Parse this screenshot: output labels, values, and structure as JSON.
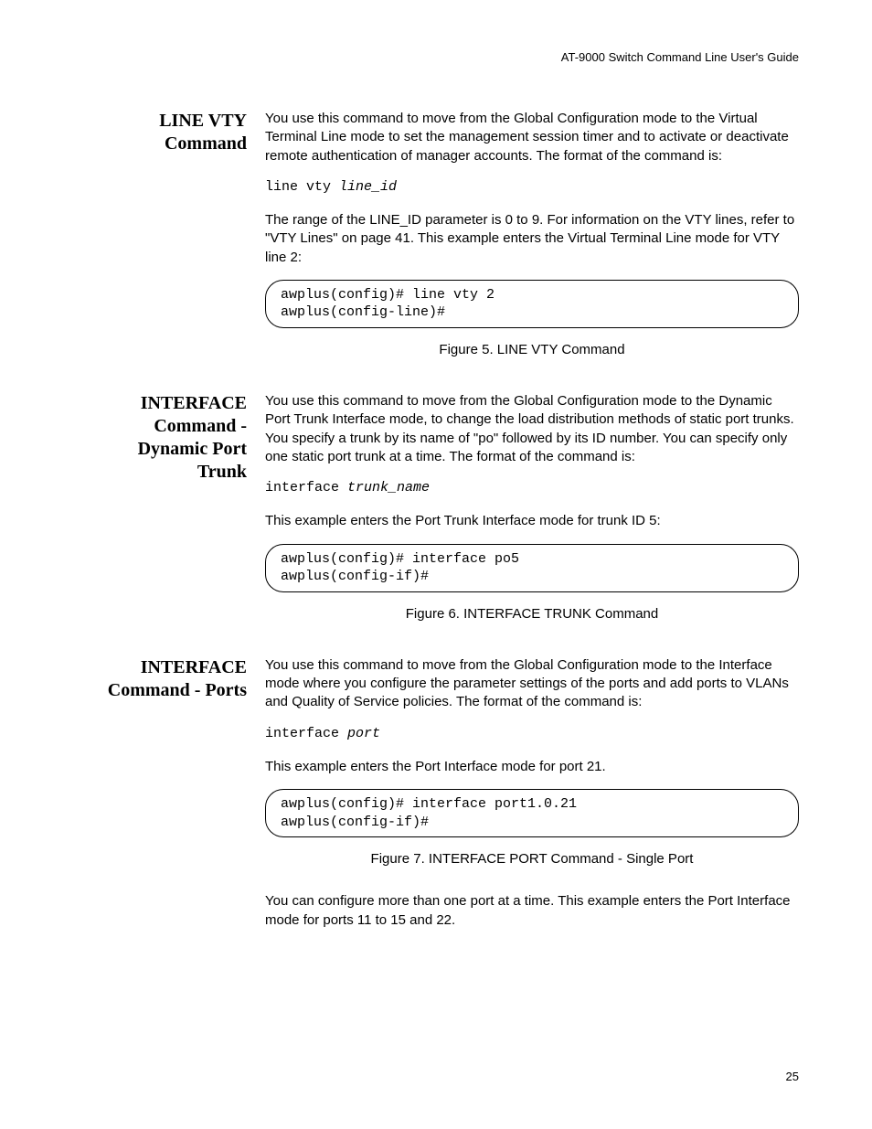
{
  "header": {
    "running_title": "AT-9000 Switch Command Line User's Guide"
  },
  "sections": {
    "line_vty": {
      "heading_l1": "LINE VTY",
      "heading_l2": "Command",
      "para1": "You use this command to move from the Global Configuration mode to the Virtual Terminal Line mode to set the management session timer and to activate or deactivate remote authentication of manager accounts. The format of the command is:",
      "syntax_cmd": "line vty ",
      "syntax_arg": "line_id",
      "para2": "The range of the LINE_ID parameter is 0 to 9. For information on the VTY lines, refer to \"VTY Lines\" on page 41. This example enters the Virtual Terminal Line mode for VTY line 2:",
      "box": "awplus(config)# line vty 2\nawplus(config-line)#",
      "caption": "Figure 5. LINE VTY Command"
    },
    "interface_trunk": {
      "heading_l1": "INTERFACE",
      "heading_l2": "Command -",
      "heading_l3": "Dynamic Port",
      "heading_l4": "Trunk",
      "para1": "You use this command to move from the Global Configuration mode to the Dynamic Port Trunk Interface mode, to change the load distribution methods of static port trunks. You specify a trunk by its name of \"po\" followed by its ID number. You can specify only one static port trunk at a time. The format of the command is:",
      "syntax_cmd": "interface ",
      "syntax_arg": "trunk_name",
      "para2": "This example enters the Port Trunk Interface mode for trunk ID 5:",
      "box": "awplus(config)# interface po5\nawplus(config-if)#",
      "caption": "Figure 6. INTERFACE TRUNK Command"
    },
    "interface_ports": {
      "heading_l1": "INTERFACE",
      "heading_l2": "Command - Ports",
      "para1": "You use this command to move from the Global Configuration mode to the Interface mode where you configure the parameter settings of the ports and add ports to VLANs and Quality of Service policies. The format of the command is:",
      "syntax_cmd": "interface ",
      "syntax_arg": "port",
      "para2": "This example enters the Port Interface mode for port 21.",
      "box": "awplus(config)# interface port1.0.21\nawplus(config-if)#",
      "caption": "Figure 7. INTERFACE PORT Command - Single Port",
      "para3": "You can configure more than one port at a time. This example enters the Port Interface mode for ports 11 to 15 and 22."
    }
  },
  "page_number": "25"
}
